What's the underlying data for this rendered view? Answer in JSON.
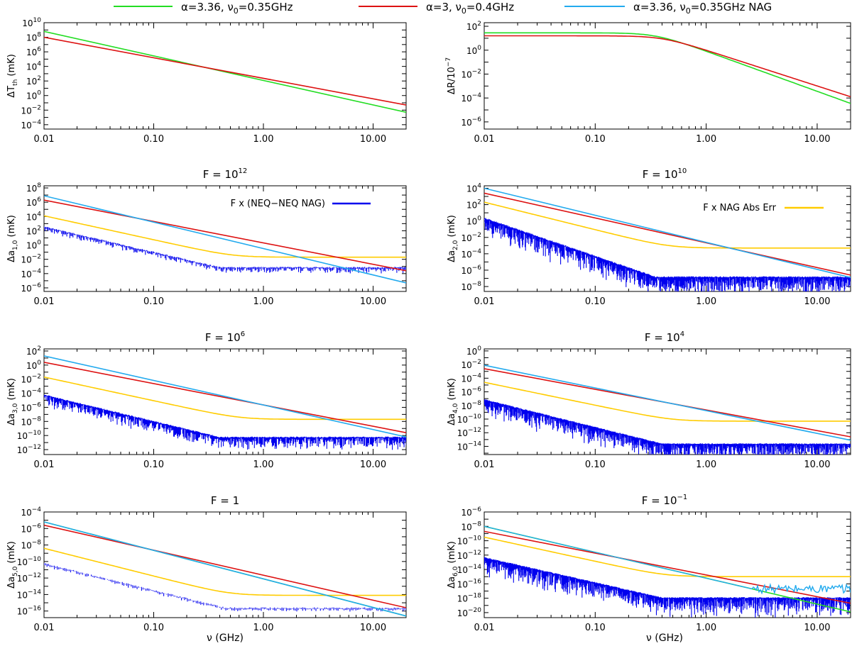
{
  "legend": [
    {
      "name": "α=3.36, ν0=0.35GHz",
      "main": "α=3.36, ν",
      "sub": "0",
      "tail": "=0.35GHz",
      "color": "#22dd22"
    },
    {
      "name": "α=3, ν0=0.4GHz",
      "main": "α=3, ν",
      "sub": "0",
      "tail": "=0.4GHz",
      "color": "#dd1111"
    },
    {
      "name": "α=3.36, ν0=0.35GHz NAG",
      "main": "α=3.36, ν",
      "sub": "0",
      "tail": "=0.35GHz NAG",
      "color": "#22aaee"
    }
  ],
  "colors": {
    "noise": "#0000ee",
    "naga": "#ffcc00",
    "green": "#22dd22",
    "red": "#dd1111",
    "cyan": "#22aaee"
  },
  "chart_data": [
    {
      "type": "line",
      "id": "p0",
      "title": "",
      "xlabel": "",
      "ylabel": "ΔT_th (mK)",
      "xlim": [
        0.01,
        20
      ],
      "ylim": [
        -4.6,
        10
      ],
      "xticks": [
        "0.01",
        "0.10",
        "1.00",
        "10.00"
      ],
      "yticks": [
        {
          "e": -4,
          "t": "10^-4"
        },
        {
          "e": -2,
          "t": "10^-2"
        },
        {
          "e": 0,
          "t": "10^0"
        },
        {
          "e": 2,
          "t": "10^2"
        },
        {
          "e": 4,
          "t": "10^4"
        },
        {
          "e": 6,
          "t": "10^6"
        },
        {
          "e": 8,
          "t": "10^8"
        },
        {
          "e": 10,
          "t": "10^10"
        }
      ],
      "series": [
        {
          "name": "α=3.36, ν0=0.35GHz",
          "kind": "power",
          "x": [
            0.01,
            20
          ],
          "log10y": [
            8.8,
            -2.3
          ],
          "color": "green"
        },
        {
          "name": "α=3, ν0=0.4GHz",
          "kind": "power",
          "x": [
            0.01,
            20
          ],
          "log10y": [
            8.0,
            -1.3
          ],
          "color": "red"
        }
      ]
    },
    {
      "type": "line",
      "id": "p1",
      "title": "",
      "xlabel": "",
      "ylabel": "ΔR/10^-7",
      "xlim": [
        0.01,
        20
      ],
      "ylim": [
        -6.6,
        2.3
      ],
      "xticks": [
        "0.01",
        "0.10",
        "1.00",
        "10.00"
      ],
      "yticks": [
        {
          "e": -6,
          "t": "10^-6"
        },
        {
          "e": -4,
          "t": "10^-4"
        },
        {
          "e": -2,
          "t": "10^-2"
        },
        {
          "e": 0,
          "t": "10^0"
        },
        {
          "e": 2,
          "t": "10^2"
        }
      ],
      "series": [
        {
          "name": "α=3.36, ν0=0.35GHz",
          "kind": "turnover",
          "plateau_log10y": 1.45,
          "knee_GHz": 0.35,
          "slope": -3.36,
          "color": "green"
        },
        {
          "name": "α=3, ν0=0.4GHz",
          "kind": "turnover",
          "plateau_log10y": 1.2,
          "knee_GHz": 0.4,
          "slope": -3.0,
          "color": "red"
        }
      ]
    },
    {
      "type": "line",
      "id": "p2",
      "title": "F = 10^12",
      "title_main": "F = 10",
      "title_exp": "12",
      "xlabel": "",
      "ylabel": "Δa_1,0 (mK)",
      "xlim": [
        0.01,
        20
      ],
      "ylim": [
        -6.5,
        8.3
      ],
      "xticks": [
        "0.01",
        "0.10",
        "1.00",
        "10.00"
      ],
      "yticks": [
        {
          "e": -6,
          "t": "10^-6"
        },
        {
          "e": -4,
          "t": "10^-4"
        },
        {
          "e": -2,
          "t": "10^-2"
        },
        {
          "e": 0,
          "t": "10^0"
        },
        {
          "e": 2,
          "t": "10^2"
        },
        {
          "e": 4,
          "t": "10^4"
        },
        {
          "e": 6,
          "t": "10^6"
        },
        {
          "e": 8,
          "t": "10^8"
        }
      ],
      "inset_legend": {
        "label": "F x (NEQ−NEQ NAG)",
        "color": "noise"
      },
      "series": [
        {
          "name": "α=3, ν0=0.4GHz",
          "kind": "power",
          "x": [
            0.01,
            20
          ],
          "log10y": [
            6.3,
            -3.6
          ],
          "color": "red"
        },
        {
          "name": "α=3.36, ν0=0.35GHz NAG",
          "kind": "power",
          "x": [
            0.01,
            20
          ],
          "log10y": [
            6.9,
            -5.3
          ],
          "color": "cyan"
        },
        {
          "name": "F x NAG Abs Err",
          "kind": "floor",
          "x": [
            0.01,
            20
          ],
          "log10y": [
            4.1,
            -1.7
          ],
          "slope": -3.36,
          "color": "naga"
        },
        {
          "name": "F x (NEQ−NEQ NAG)",
          "kind": "noise",
          "start_log10y": 2.5,
          "floor_log10y": -3.2,
          "knee_GHz": 0.4,
          "amp": 0.4,
          "density": 0.5,
          "color": "noise"
        }
      ]
    },
    {
      "type": "line",
      "id": "p3",
      "title": "F = 10^10",
      "title_main": "F = 10",
      "title_exp": "10",
      "xlabel": "",
      "ylabel": "Δa_2,0 (mK)",
      "xlim": [
        0.01,
        20
      ],
      "ylim": [
        -8.6,
        4.3
      ],
      "xticks": [
        "0.01",
        "0.10",
        "1.00",
        "10.00"
      ],
      "yticks": [
        {
          "e": -8,
          "t": "10^-8"
        },
        {
          "e": -6,
          "t": "10^-6"
        },
        {
          "e": -4,
          "t": "10^-4"
        },
        {
          "e": -2,
          "t": "10^-2"
        },
        {
          "e": 0,
          "t": "10^0"
        },
        {
          "e": 2,
          "t": "10^2"
        },
        {
          "e": 4,
          "t": "10^4"
        }
      ],
      "inset_legend": {
        "label": "F x NAG Abs Err",
        "color": "naga"
      },
      "series": [
        {
          "name": "α=3, ν0=0.4GHz",
          "kind": "power",
          "x": [
            0.01,
            20
          ],
          "log10y": [
            3.4,
            -6.6
          ],
          "color": "red"
        },
        {
          "name": "α=3.36, ν0=0.35GHz NAG",
          "kind": "power",
          "x": [
            0.01,
            20
          ],
          "log10y": [
            4.0,
            -6.9
          ],
          "color": "cyan"
        },
        {
          "name": "F x NAG Abs Err",
          "kind": "floor",
          "x": [
            0.01,
            20
          ],
          "log10y": [
            2.3,
            -3.3
          ],
          "slope": -3.36,
          "color": "naga"
        },
        {
          "name": "F x (NEQ−NEQ NAG)",
          "kind": "noise",
          "start_log10y": 0.3,
          "floor_log10y": -6.9,
          "knee_GHz": 0.35,
          "amp": 1.3,
          "density": 1.0,
          "color": "noise"
        }
      ]
    },
    {
      "type": "line",
      "id": "p4",
      "title": "F = 10^6",
      "title_main": "F = 10",
      "title_exp": "6",
      "xlabel": "",
      "ylabel": "Δa_3,0 (mK)",
      "xlim": [
        0.01,
        20
      ],
      "ylim": [
        -12.7,
        2.3
      ],
      "xticks": [
        "0.01",
        "0.10",
        "1.00",
        "10.00"
      ],
      "yticks": [
        {
          "e": -12,
          "t": "10^-12"
        },
        {
          "e": -10,
          "t": "10^-10"
        },
        {
          "e": -8,
          "t": "10^-8"
        },
        {
          "e": -6,
          "t": "10^-6"
        },
        {
          "e": -4,
          "t": "10^-4"
        },
        {
          "e": -2,
          "t": "10^-2"
        },
        {
          "e": 0,
          "t": "10^0"
        },
        {
          "e": 2,
          "t": "10^2"
        }
      ],
      "series": [
        {
          "name": "α=3, ν0=0.4GHz",
          "kind": "power",
          "x": [
            0.01,
            20
          ],
          "log10y": [
            0.4,
            -9.6
          ],
          "color": "red"
        },
        {
          "name": "α=3.36, ν0=0.35GHz NAG",
          "kind": "power",
          "x": [
            0.01,
            20
          ],
          "log10y": [
            1.3,
            -10.2
          ],
          "color": "cyan"
        },
        {
          "name": "F x NAG Abs Err",
          "kind": "floor",
          "x": [
            0.01,
            20
          ],
          "log10y": [
            -1.7,
            -7.7
          ],
          "slope": -3.36,
          "color": "naga"
        },
        {
          "name": "F x (NEQ−NEQ NAG)",
          "kind": "noise",
          "start_log10y": -4.3,
          "floor_log10y": -10.3,
          "knee_GHz": 0.4,
          "amp": 0.9,
          "density": 0.75,
          "color": "noise"
        }
      ]
    },
    {
      "type": "line",
      "id": "p5",
      "title": "F = 10^4",
      "title_main": "F = 10",
      "title_exp": "4",
      "xlabel": "",
      "ylabel": "Δa_4,0 (mK)",
      "xlim": [
        0.01,
        20
      ],
      "ylim": [
        -15.2,
        0.3
      ],
      "xticks": [
        "0.01",
        "0.10",
        "1.00",
        "10.00"
      ],
      "yticks": [
        {
          "e": -14,
          "t": "10^-14"
        },
        {
          "e": -12,
          "t": "10^-12"
        },
        {
          "e": -10,
          "t": "10^-10"
        },
        {
          "e": -8,
          "t": "10^-8"
        },
        {
          "e": -6,
          "t": "10^-6"
        },
        {
          "e": -4,
          "t": "10^-4"
        },
        {
          "e": -2,
          "t": "10^-2"
        },
        {
          "e": 0,
          "t": "10^0"
        }
      ],
      "series": [
        {
          "name": "α=3, ν0=0.4GHz",
          "kind": "power",
          "x": [
            0.01,
            20
          ],
          "log10y": [
            -2.6,
            -12.6
          ],
          "color": "red"
        },
        {
          "name": "α=3.36, ν0=0.35GHz NAG",
          "kind": "power",
          "x": [
            0.01,
            20
          ],
          "log10y": [
            -2.1,
            -13.1
          ],
          "color": "cyan"
        },
        {
          "name": "F x NAG Abs Err",
          "kind": "floor",
          "x": [
            0.01,
            20
          ],
          "log10y": [
            -4.6,
            -10.3
          ],
          "slope": -3.36,
          "color": "naga"
        },
        {
          "name": "F x (NEQ−NEQ NAG)",
          "kind": "noise",
          "start_log10y": -7.2,
          "floor_log10y": -13.7,
          "knee_GHz": 0.4,
          "amp": 1.4,
          "density": 1.0,
          "color": "noise"
        }
      ]
    },
    {
      "type": "line",
      "id": "p6",
      "title": "F = 1",
      "title_main": "F = 1",
      "title_exp": "",
      "xlabel": "ν (GHz)",
      "ylabel": "Δa_5,0 (mK)",
      "xlim": [
        0.01,
        20
      ],
      "ylim": [
        -16.8,
        -4
      ],
      "xticks": [
        "0.01",
        "0.10",
        "1.00",
        "10.00"
      ],
      "yticks": [
        {
          "e": -16,
          "t": "10^-16"
        },
        {
          "e": -14,
          "t": "10^-14"
        },
        {
          "e": -12,
          "t": "10^-12"
        },
        {
          "e": -10,
          "t": "10^-10"
        },
        {
          "e": -8,
          "t": "10^-8"
        },
        {
          "e": -6,
          "t": "10^-6"
        },
        {
          "e": -4,
          "t": "10^-4"
        }
      ],
      "series": [
        {
          "name": "α=3.36, ν0=0.35GHz",
          "kind": "power",
          "x": [
            0.01,
            20
          ],
          "log10y": [
            -5.2,
            -16.6
          ],
          "color": "green"
        },
        {
          "name": "α=3, ν0=0.4GHz",
          "kind": "power",
          "x": [
            0.01,
            20
          ],
          "log10y": [
            -5.6,
            -15.6
          ],
          "color": "red"
        },
        {
          "name": "α=3.36, ν0=0.35GHz NAG",
          "kind": "power",
          "x": [
            0.01,
            20
          ],
          "log10y": [
            -5.2,
            -16.6
          ],
          "color": "cyan"
        },
        {
          "name": "F x NAG Abs Err",
          "kind": "floor",
          "x": [
            0.01,
            20
          ],
          "log10y": [
            -8.4,
            -14.1
          ],
          "slope": -3.36,
          "color": "naga"
        },
        {
          "name": "F x (NEQ−NEQ NAG)",
          "kind": "noise",
          "start_log10y": -10.3,
          "floor_log10y": -15.7,
          "knee_GHz": 0.45,
          "amp": 0.2,
          "density": 0.35,
          "color": "noise"
        }
      ]
    },
    {
      "type": "line",
      "id": "p7",
      "title": "F = 10^-1",
      "title_main": "F = 10",
      "title_exp": "−1",
      "xlabel": "ν (GHz)",
      "ylabel": "Δa_6,0 (mK)",
      "xlim": [
        0.01,
        20
      ],
      "ylim": [
        -20.7,
        -6
      ],
      "xticks": [
        "0.01",
        "0.10",
        "1.00",
        "10.00"
      ],
      "yticks": [
        {
          "e": -20,
          "t": "10^-20"
        },
        {
          "e": -18,
          "t": "10^-18"
        },
        {
          "e": -16,
          "t": "10^-16"
        },
        {
          "e": -14,
          "t": "10^-14"
        },
        {
          "e": -12,
          "t": "10^-12"
        },
        {
          "e": -10,
          "t": "10^-10"
        },
        {
          "e": -8,
          "t": "10^-8"
        },
        {
          "e": -6,
          "t": "10^-6"
        }
      ],
      "series": [
        {
          "name": "α=3.36, ν0=0.35GHz",
          "kind": "power",
          "x": [
            0.01,
            20
          ],
          "log10y": [
            -8.0,
            -19.9
          ],
          "color": "green"
        },
        {
          "name": "α=3, ν0=0.4GHz",
          "kind": "power",
          "x": [
            0.01,
            20
          ],
          "log10y": [
            -8.7,
            -18.7
          ],
          "color": "red"
        },
        {
          "name": "α=3.36, ν0=0.35GHz NAG",
          "kind": "capped",
          "x": [
            0.01,
            20
          ],
          "log10y": [
            -8.0,
            -19.9
          ],
          "cap_log10y": -16.7,
          "color": "cyan"
        },
        {
          "name": "F x NAG Abs Err",
          "kind": "floor",
          "x": [
            0.01,
            20
          ],
          "log10y": [
            -9.5,
            -15.0
          ],
          "slope": -3.36,
          "color": "naga"
        },
        {
          "name": "F x (NEQ−NEQ NAG)",
          "kind": "noise",
          "start_log10y": -12.4,
          "floor_log10y": -18.0,
          "knee_GHz": 0.4,
          "amp": 1.4,
          "density": 1.0,
          "color": "noise"
        }
      ]
    }
  ]
}
